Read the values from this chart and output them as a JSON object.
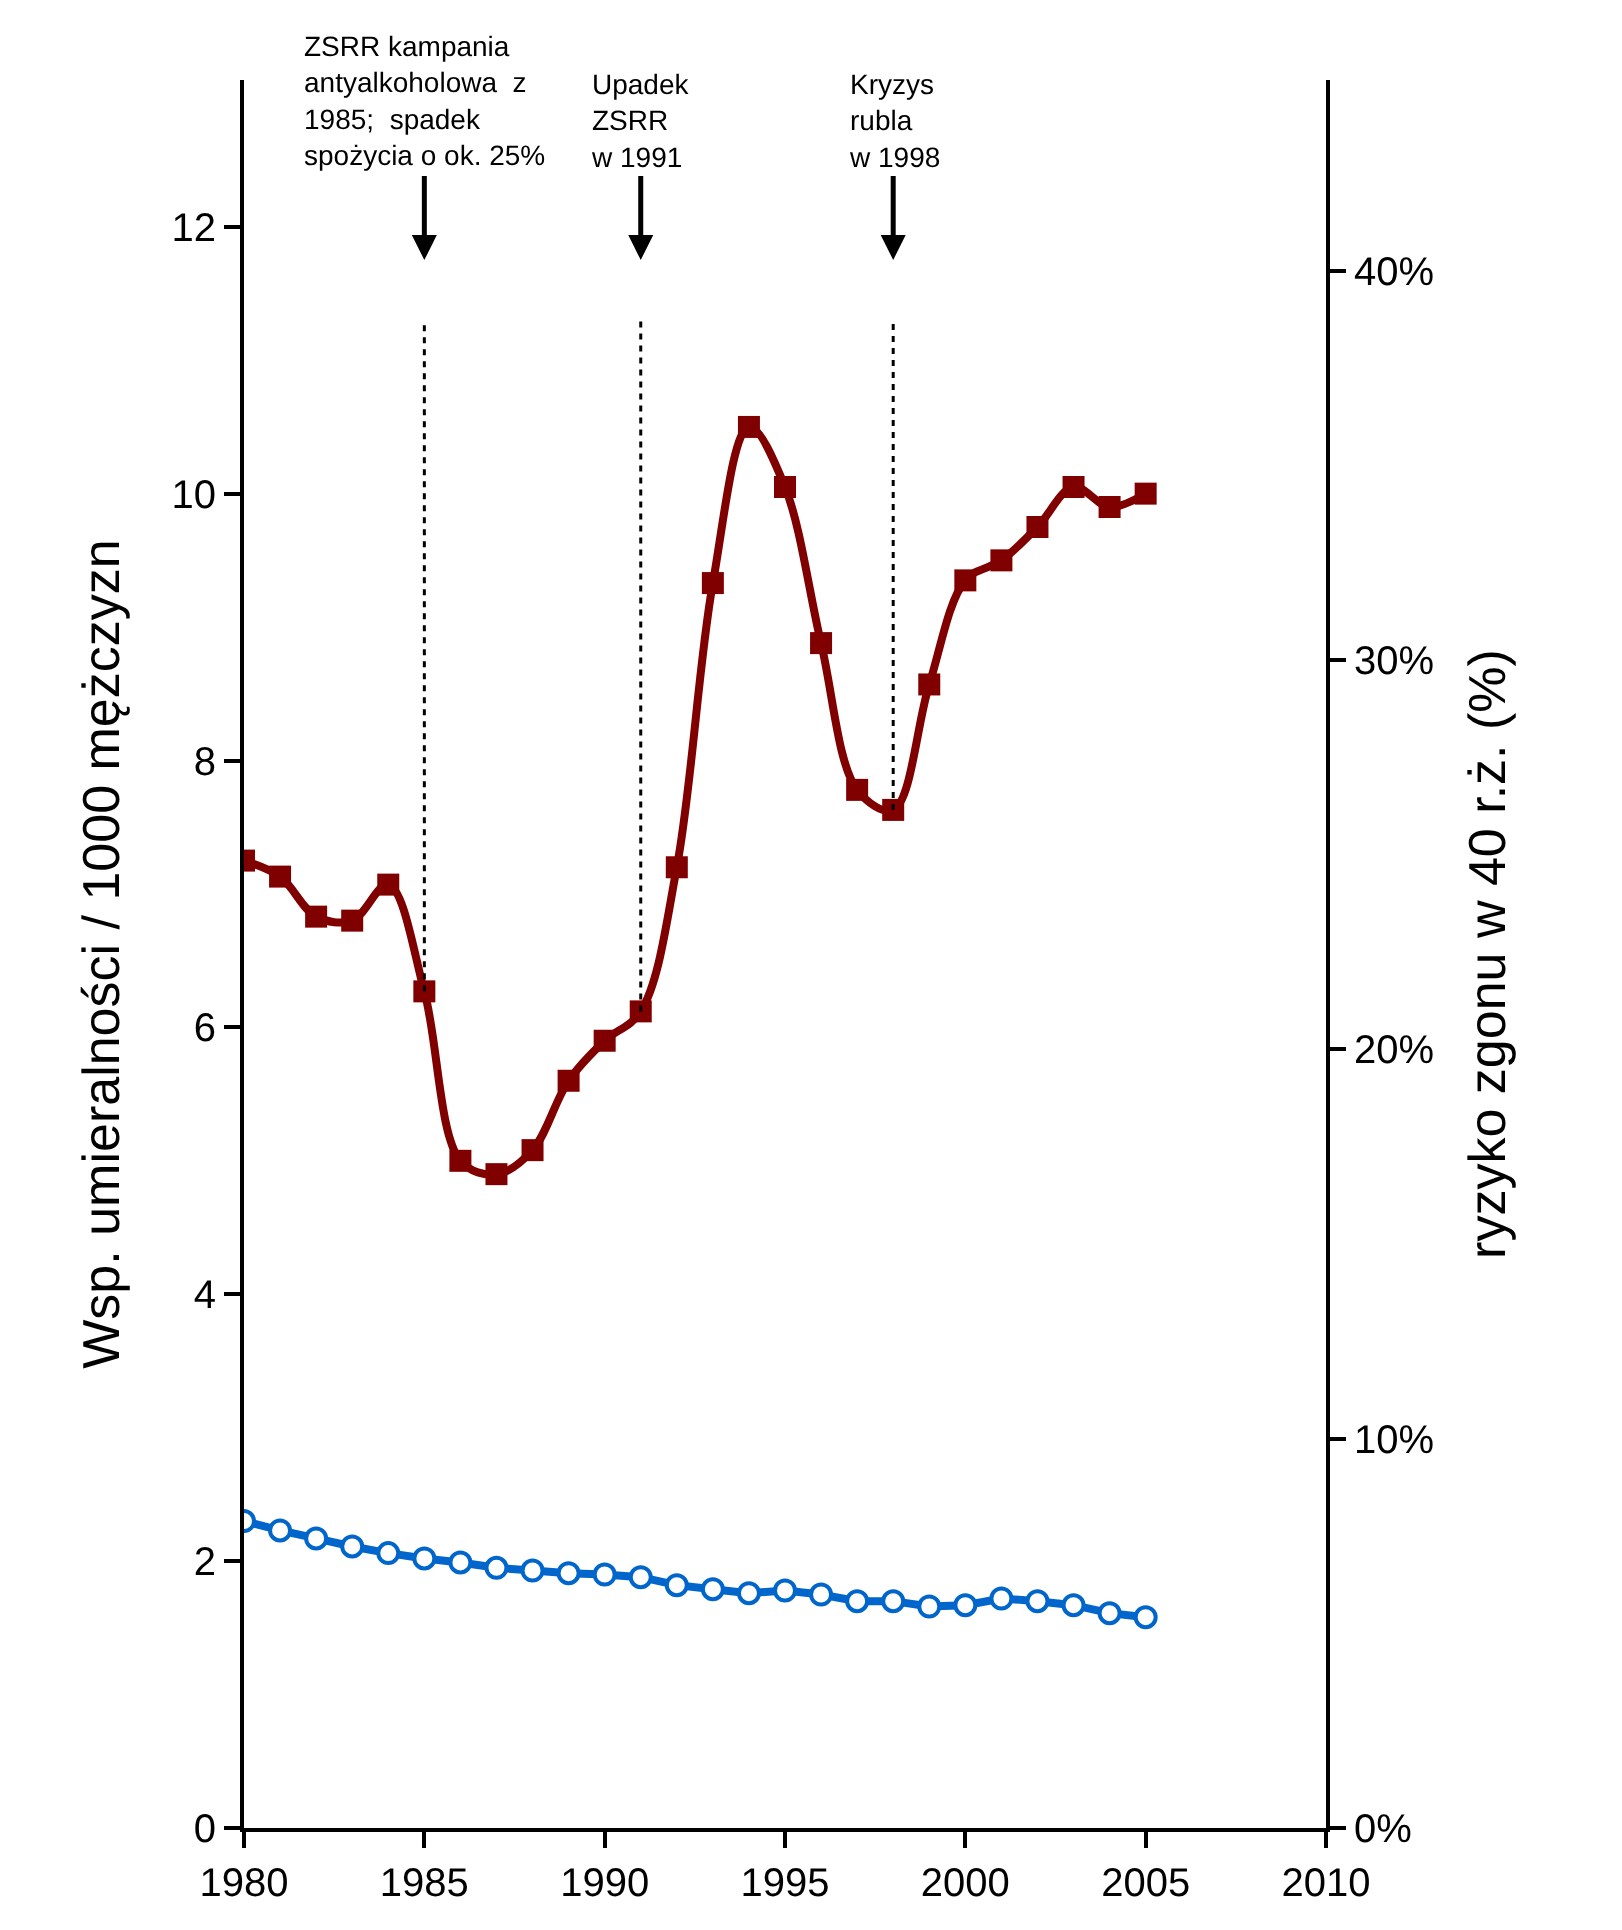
{
  "chart_data": {
    "type": "line",
    "ylabel": "Wsp. umieralności / 1000 mężczyzn",
    "y2label": "ryzyko zgonu w 40 r.ż. (%)",
    "x": [
      1980,
      1981,
      1982,
      1983,
      1984,
      1985,
      1986,
      1987,
      1988,
      1989,
      1990,
      1991,
      1992,
      1993,
      1994,
      1995,
      1996,
      1997,
      1998,
      1999,
      2000,
      2001,
      2002,
      2003,
      2004,
      2005
    ],
    "series": [
      {
        "color": "#800000",
        "marker": "square",
        "values": [
          7.25,
          7.13,
          6.83,
          6.8,
          7.07,
          6.27,
          5.0,
          4.9,
          5.08,
          5.6,
          5.9,
          6.12,
          7.2,
          9.33,
          10.5,
          10.05,
          8.88,
          7.78,
          7.63,
          8.57,
          9.35,
          9.5,
          9.75,
          10.05,
          9.9,
          10.0
        ]
      },
      {
        "color": "#0066cc",
        "marker": "circle",
        "values": [
          2.3,
          2.23,
          2.17,
          2.11,
          2.06,
          2.02,
          1.99,
          1.95,
          1.93,
          1.91,
          1.9,
          1.88,
          1.82,
          1.79,
          1.76,
          1.78,
          1.75,
          1.7,
          1.7,
          1.66,
          1.67,
          1.72,
          1.7,
          1.67,
          1.61,
          1.58
        ]
      }
    ],
    "xlim": [
      1980,
      2010
    ],
    "xticks": [
      1980,
      1985,
      1990,
      1995,
      2000,
      2005,
      2010
    ],
    "ylim": [
      0,
      13.1
    ],
    "yticks": [
      0,
      2,
      4,
      6,
      8,
      10,
      12
    ],
    "y2lim": [
      0,
      44.9
    ],
    "y2ticks": [
      {
        "value": 0,
        "label": "0%"
      },
      {
        "value": 10,
        "label": "10%"
      },
      {
        "value": 20,
        "label": "20%"
      },
      {
        "value": 30,
        "label": "30%"
      },
      {
        "value": 40,
        "label": "40%"
      }
    ],
    "ref_lines": [
      {
        "axis": "x",
        "value": 1985,
        "color": "#000000",
        "line_style": "dotted"
      },
      {
        "axis": "x",
        "value": 1991,
        "color": "#000000",
        "line_style": "dotted"
      },
      {
        "axis": "x",
        "value": 1998,
        "color": "#000000",
        "line_style": "dotted"
      }
    ],
    "annotations": [
      "ZSRR kampania\nantyalkoholowa  z\n1985;  spadek\nspożycia o ok. 25%",
      "Upadek\nZSRR\nw 1991",
      "Kryzys\nrubla\nw 1998"
    ]
  }
}
